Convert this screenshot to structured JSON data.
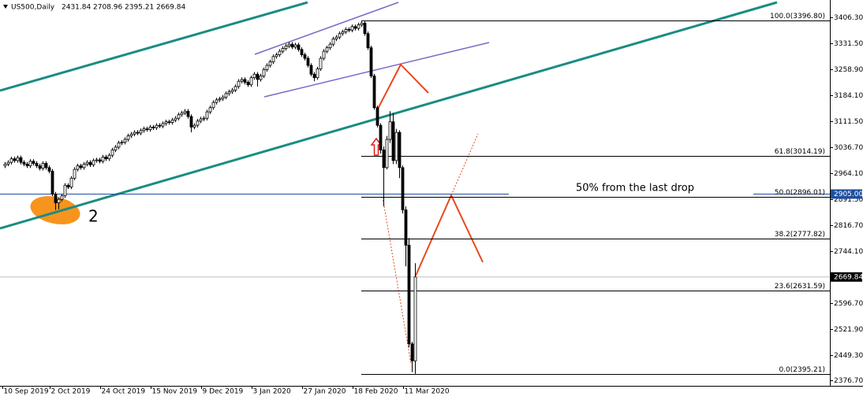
{
  "chart_data": {
    "type": "candlestick",
    "symbol": "US500,Daily",
    "categories": [
      "10 Sep 2019",
      null,
      null,
      null,
      null,
      null,
      null,
      null,
      null,
      null,
      null,
      null,
      null,
      null,
      null,
      "2 Oct 2019",
      null,
      null,
      null,
      null,
      null,
      null,
      null,
      null,
      null,
      null,
      null,
      null,
      null,
      null,
      null,
      "24 Oct 2019",
      null,
      null,
      null,
      null,
      null,
      null,
      null,
      null,
      null,
      null,
      null,
      null,
      null,
      null,
      null,
      "15 Nov 2019",
      null,
      null,
      null,
      null,
      null,
      null,
      null,
      null,
      null,
      null,
      null,
      null,
      null,
      null,
      null,
      "9 Dec 2019",
      null,
      null,
      null,
      null,
      null,
      null,
      null,
      null,
      null,
      null,
      null,
      null,
      null,
      null,
      null,
      "3 Jan 2020",
      null,
      null,
      null,
      null,
      null,
      null,
      null,
      null,
      null,
      null,
      null,
      null,
      null,
      null,
      null,
      "27 Jan 2020",
      null,
      null,
      null,
      null,
      null,
      null,
      null,
      null,
      null,
      null,
      null,
      null,
      null,
      null,
      null,
      "18 Feb 2020",
      null,
      null,
      null,
      null,
      null,
      null,
      null,
      null,
      null,
      null,
      null,
      null,
      null,
      null,
      null,
      "11 Mar 2020",
      null,
      null,
      null
    ],
    "open": [
      2985,
      2990,
      2995,
      3005,
      3000,
      3008,
      2995,
      2990,
      2985,
      2998,
      2992,
      2985,
      2978,
      2992,
      2980,
      2970,
      2905,
      2880,
      2890,
      2900,
      2930,
      2925,
      2950,
      2975,
      2985,
      2980,
      2990,
      2995,
      2988,
      3000,
      3002,
      2998,
      3010,
      3005,
      3015,
      3030,
      3038,
      3050,
      3052,
      3060,
      3070,
      3075,
      3080,
      3078,
      3085,
      3090,
      3088,
      3095,
      3093,
      3100,
      3098,
      3105,
      3110,
      3108,
      3115,
      3120,
      3130,
      3135,
      3140,
      3125,
      3095,
      3100,
      3112,
      3118,
      3120,
      3138,
      3150,
      3165,
      3172,
      3175,
      3180,
      3190,
      3195,
      3200,
      3210,
      3225,
      3230,
      3222,
      3215,
      3235,
      3245,
      3230,
      3240,
      3258,
      3270,
      3280,
      3295,
      3300,
      3310,
      3318,
      3325,
      3330,
      3322,
      3328,
      3315,
      3300,
      3290,
      3270,
      3245,
      3235,
      3260,
      3290,
      3310,
      3320,
      3330,
      3345,
      3350,
      3360,
      3365,
      3372,
      3370,
      3380,
      3375,
      3385,
      3390,
      3360,
      3320,
      3240,
      3150,
      3100,
      3030,
      2980,
      3060,
      3110,
      3000,
      3080,
      2980,
      2860,
      2760,
      2480,
      2431.84
    ],
    "high": [
      2996,
      3001,
      3011,
      3011,
      3014,
      3014,
      3001,
      2996,
      3004,
      3004,
      2998,
      2991,
      2998,
      2998,
      2986,
      2976,
      2911,
      2896,
      2906,
      2936,
      2936,
      2956,
      2981,
      2991,
      2991,
      2996,
      3001,
      3001,
      3006,
      3008,
      3008,
      3016,
      3016,
      3021,
      3036,
      3044,
      3056,
      3058,
      3066,
      3076,
      3081,
      3086,
      3086,
      3091,
      3096,
      3096,
      3101,
      3101,
      3106,
      3106,
      3111,
      3116,
      3116,
      3121,
      3126,
      3136,
      3141,
      3146,
      3146,
      3131,
      3106,
      3118,
      3124,
      3126,
      3144,
      3156,
      3171,
      3178,
      3181,
      3186,
      3196,
      3201,
      3206,
      3216,
      3231,
      3236,
      3236,
      3228,
      3241,
      3251,
      3251,
      3246,
      3264,
      3276,
      3286,
      3301,
      3306,
      3316,
      3324,
      3331,
      3336,
      3336,
      3334,
      3334,
      3321,
      3306,
      3296,
      3276,
      3251,
      3266,
      3296,
      3316,
      3326,
      3336,
      3351,
      3356,
      3366,
      3371,
      3378,
      3378,
      3386,
      3386,
      3391,
      3396.8,
      3396,
      3366,
      3326,
      3246,
      3156,
      3106,
      3040,
      3070,
      3140,
      3135,
      3090,
      3086,
      2986,
      2870,
      2780,
      2486,
      2708.96
    ],
    "low": [
      2979,
      2984,
      2989,
      2994,
      2994,
      2989,
      2984,
      2979,
      2979,
      2986,
      2979,
      2972,
      2972,
      2974,
      2964,
      2899,
      2860,
      2862,
      2884,
      2894,
      2919,
      2919,
      2944,
      2969,
      2974,
      2974,
      2984,
      2982,
      2982,
      2994,
      2992,
      2992,
      2999,
      2999,
      3009,
      3024,
      3032,
      3044,
      3046,
      3054,
      3064,
      3069,
      3072,
      3072,
      3079,
      3082,
      3082,
      3087,
      3087,
      3092,
      3092,
      3099,
      3102,
      3102,
      3109,
      3114,
      3124,
      3129,
      3119,
      3080,
      3089,
      3094,
      3106,
      3112,
      3114,
      3132,
      3144,
      3159,
      3166,
      3169,
      3174,
      3184,
      3189,
      3194,
      3204,
      3219,
      3216,
      3209,
      3209,
      3229,
      3210,
      3224,
      3234,
      3252,
      3264,
      3274,
      3289,
      3294,
      3304,
      3312,
      3319,
      3316,
      3316,
      3309,
      3294,
      3284,
      3264,
      3239,
      3225,
      3229,
      3254,
      3284,
      3304,
      3314,
      3324,
      3339,
      3344,
      3354,
      3359,
      3364,
      3364,
      3369,
      3369,
      3379,
      3354,
      3314,
      3234,
      3144,
      3094,
      3020,
      2870,
      2975,
      3050,
      2990,
      2990,
      2950,
      2850,
      2700,
      2470,
      2400,
      2395.21
    ],
    "close": [
      2990,
      2995,
      3005,
      3000,
      3008,
      2995,
      2990,
      2985,
      2998,
      2992,
      2985,
      2978,
      2992,
      2980,
      2970,
      2905,
      2880,
      2890,
      2900,
      2930,
      2925,
      2950,
      2975,
      2985,
      2980,
      2990,
      2995,
      2988,
      3000,
      3002,
      2998,
      3010,
      3005,
      3015,
      3030,
      3038,
      3050,
      3052,
      3060,
      3070,
      3075,
      3080,
      3078,
      3085,
      3090,
      3088,
      3095,
      3093,
      3100,
      3098,
      3105,
      3110,
      3108,
      3115,
      3120,
      3130,
      3135,
      3140,
      3125,
      3095,
      3100,
      3112,
      3118,
      3120,
      3138,
      3150,
      3165,
      3172,
      3175,
      3180,
      3190,
      3195,
      3200,
      3210,
      3225,
      3230,
      3222,
      3215,
      3235,
      3245,
      3230,
      3240,
      3258,
      3270,
      3280,
      3295,
      3300,
      3310,
      3318,
      3325,
      3330,
      3322,
      3328,
      3315,
      3300,
      3290,
      3270,
      3245,
      3235,
      3260,
      3290,
      3310,
      3320,
      3330,
      3345,
      3350,
      3360,
      3365,
      3372,
      3370,
      3380,
      3375,
      3385,
      3390,
      3360,
      3320,
      3240,
      3150,
      3100,
      3030,
      2980,
      3060,
      3110,
      3000,
      3080,
      2980,
      2860,
      2760,
      2480,
      2431.84,
      2669.84
    ],
    "ylim": [
      2361.1,
      3455.4
    ],
    "yticks": [
      {
        "value": 3406.3,
        "label": "3406.30"
      },
      {
        "value": 3331.5,
        "label": "3331.50"
      },
      {
        "value": 3258.9,
        "label": "3258.90"
      },
      {
        "value": 3184.1,
        "label": "3184.10"
      },
      {
        "value": 3111.5,
        "label": "3111.50"
      },
      {
        "value": 3036.7,
        "label": "3036.70"
      },
      {
        "value": 2964.1,
        "label": "2964.10"
      },
      {
        "value": 2891.5,
        "label": "2891.50"
      },
      {
        "value": 2816.7,
        "label": "2816.70"
      },
      {
        "value": 2744.1,
        "label": "2744.10"
      },
      {
        "value": 2596.7,
        "label": "2596.70"
      },
      {
        "value": 2521.9,
        "label": "2521.90"
      },
      {
        "value": 2449.3,
        "label": "2449.30"
      },
      {
        "value": 2376.7,
        "label": "2376.70"
      }
    ],
    "fib_levels": [
      {
        "value": 3396.8,
        "label": "100.0(3396.80)"
      },
      {
        "value": 3014.19,
        "label": "61.8(3014.19)"
      },
      {
        "value": 2896.01,
        "label": "50.0(2896.01)"
      },
      {
        "value": 2777.82,
        "label": "38.2(2777.82)"
      },
      {
        "value": 2631.59,
        "label": "23.6(2631.59)"
      },
      {
        "value": 2395.21,
        "label": "0.0(2395.21)"
      }
    ],
    "horizontal_line": {
      "value": 2905,
      "label": "2905.00"
    },
    "annotations": [
      "50% from the last drop",
      "2"
    ]
  }
}
